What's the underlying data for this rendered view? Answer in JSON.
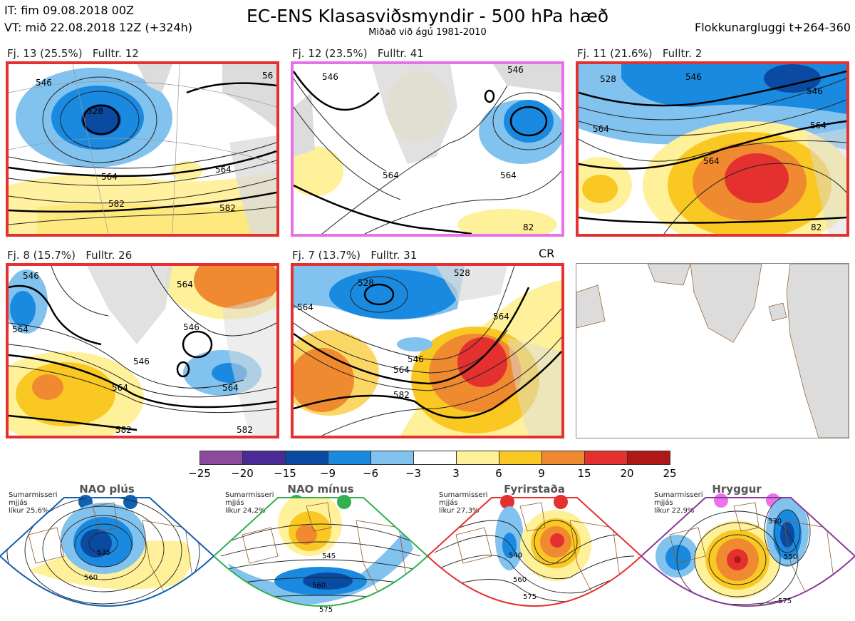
{
  "header": {
    "it_line": "IT: fim 09.08.2018 00Z",
    "vt_line": "VT: mið 22.08.2018 12Z  (+324h)",
    "title": "EC-ENS Klasasviðsmyndir - 500 hPa hæð",
    "subtitle": "Miðað við ágú 1981-2010",
    "window": "Flokkunargluggi t+264-360"
  },
  "panels": [
    {
      "label": "Fj. 13 (25.5%)",
      "members": "Fulltr. 12",
      "contours": [
        "546",
        "528",
        "564",
        "582",
        "564",
        "582",
        "56"
      ],
      "border": "#e53030"
    },
    {
      "label": "Fj. 12 (23.5%)",
      "members": "Fulltr. 41",
      "contours": [
        "546",
        "564",
        "564",
        "82",
        "546"
      ],
      "border": "#e870e8"
    },
    {
      "label": "Fj. 11 (21.6%)",
      "members": "Fulltr. 2",
      "contours": [
        "528",
        "546",
        "546",
        "564",
        "564",
        "564",
        "82"
      ],
      "border": "#e53030"
    },
    {
      "label": "Fj. 8 (15.7%)",
      "members": "Fulltr. 26",
      "contours": [
        "546",
        "564",
        "564",
        "546",
        "546",
        "564",
        "564",
        "582",
        "582"
      ],
      "border": "#e53030"
    },
    {
      "label": "Fj. 7 (13.7%)",
      "members": "Fulltr. 31",
      "contours": [
        "528",
        "528",
        "564",
        "546",
        "564",
        "564",
        "582"
      ],
      "border": "#e53030",
      "tag": "CR"
    }
  ],
  "colorbar": {
    "ticks": [
      "−25",
      "−20",
      "−15",
      "−9",
      "−6",
      "−3",
      "3",
      "6",
      "9",
      "15",
      "20",
      "25"
    ],
    "colors": [
      "#8b4a9c",
      "#4a2a94",
      "#0a4aa0",
      "#1a8ae0",
      "#82c2ef",
      "#ffffff",
      "#fff09a",
      "#f9c823",
      "#f08a30",
      "#e53030",
      "#b01818"
    ]
  },
  "regimes": [
    {
      "name": "NAO plús",
      "season": "Sumarmisseri",
      "mean": "mjjás",
      "prob": "líkur 25,6%",
      "color": "#1060b0",
      "contours": [
        "535",
        "560"
      ]
    },
    {
      "name": "NAO mínus",
      "season": "Sumarmisseri",
      "mean": "mjjás",
      "prob": "líkur 24,2%",
      "color": "#30b050",
      "contours": [
        "545",
        "560",
        "575"
      ]
    },
    {
      "name": "Fyrirstaða",
      "season": "Sumarmisseri",
      "mean": "mjjás",
      "prob": "líkur 27,3%",
      "color": "#e53030",
      "contours": [
        "540",
        "560",
        "575"
      ]
    },
    {
      "name": "Hryggur",
      "season": "Sumarmisseri",
      "mean": "mjjás",
      "prob": "líkur 22,9%",
      "color": "#8a3a9a",
      "dotcolor": "#ee70ee",
      "contours": [
        "530",
        "550",
        "575"
      ]
    }
  ]
}
